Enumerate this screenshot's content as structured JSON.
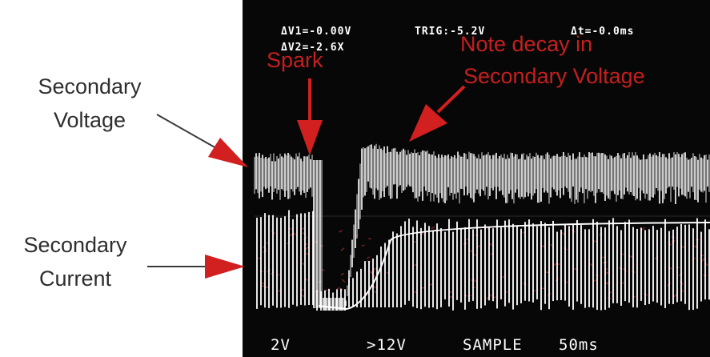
{
  "labels": {
    "secondary_voltage": [
      "Secondary",
      "Voltage"
    ],
    "secondary_current": [
      "Secondary",
      "Current"
    ]
  },
  "scope": {
    "top_readout": {
      "dv1": "ΔV1=-0.00V",
      "dv2": "ΔV2=-2.6X",
      "trig": "TRIG:-5.2V",
      "dt": "Δt=-0.0ms"
    },
    "bottom_readout": {
      "ch1_scale": "2V",
      "trigger_level": ">12V",
      "mode": "SAMPLE",
      "timebase": "50ms"
    }
  },
  "annotations": {
    "spark": "Spark",
    "decay_note": [
      "Note decay in",
      "Secondary Voltage"
    ]
  },
  "colors": {
    "annotation": "#c61f1f",
    "screen_background": "#070707",
    "trace": "#ffffff",
    "label_text": "#2e2e2e",
    "current_noise": "#7a2222"
  }
}
